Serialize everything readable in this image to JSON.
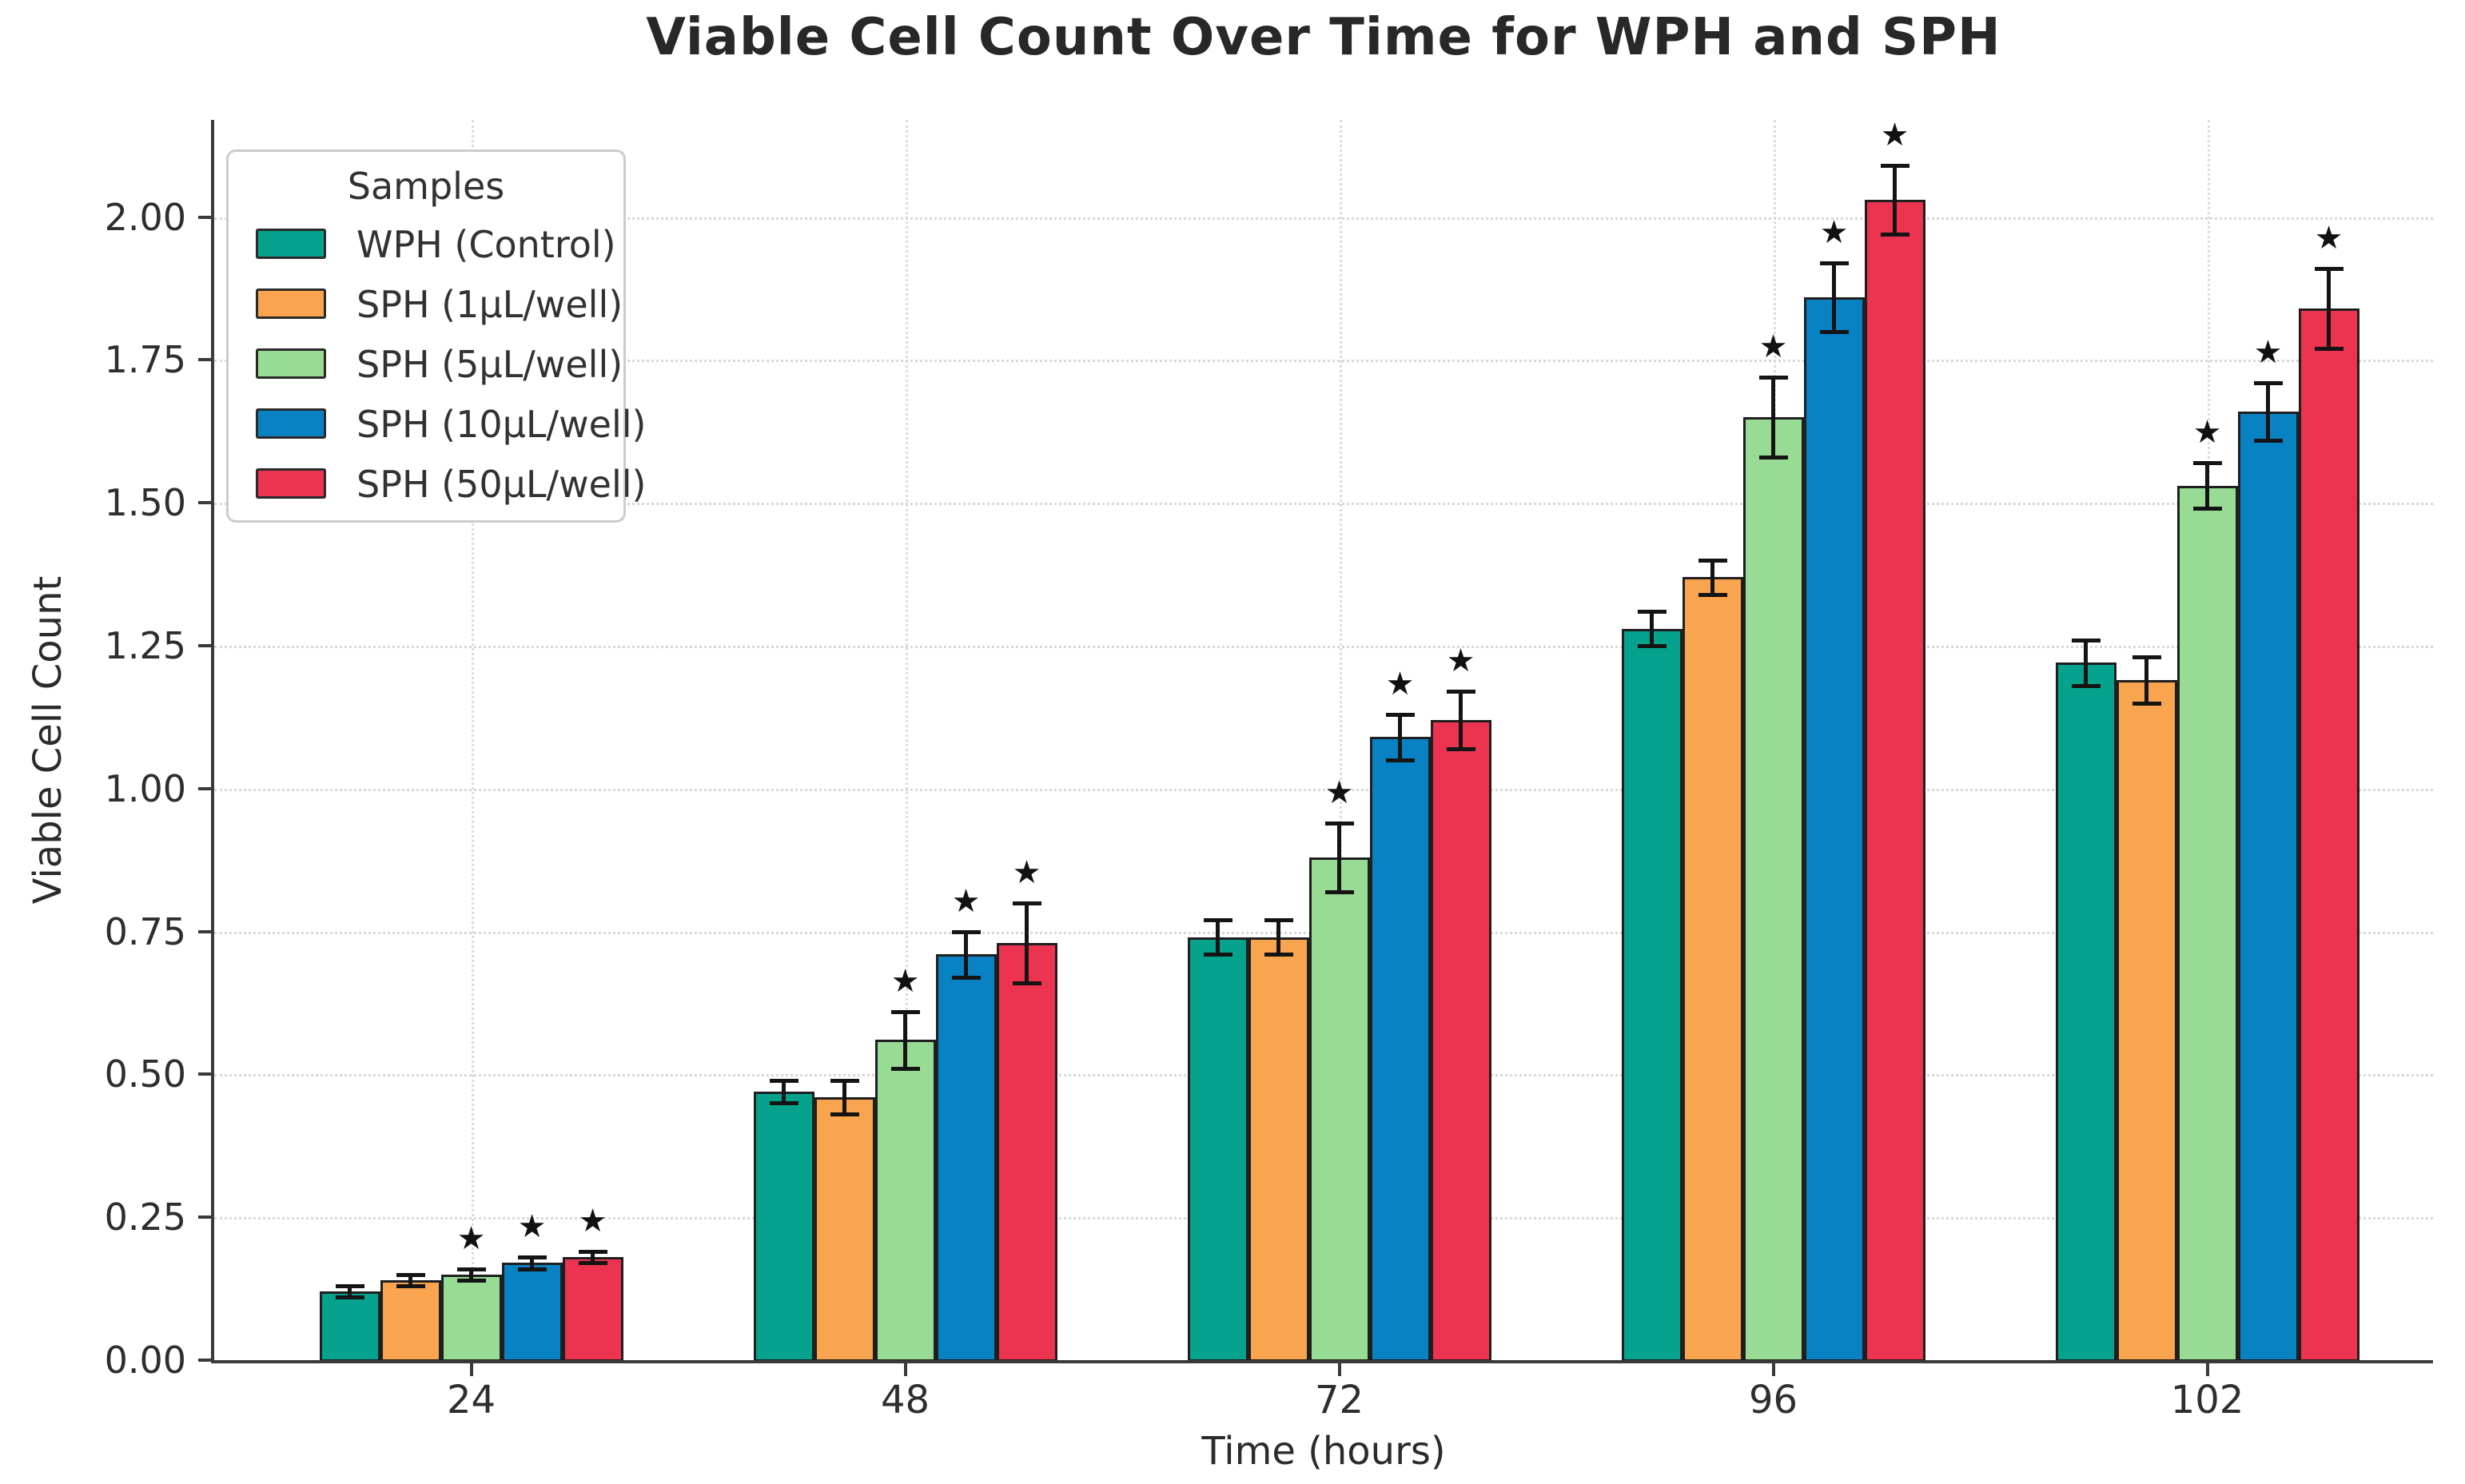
{
  "title": "Viable Cell Count Over Time for WPH and SPH",
  "chart_data": {
    "type": "bar",
    "title": "Viable Cell Count Over Time for WPH and SPH",
    "xlabel": "Time (hours)",
    "ylabel": "Viable Cell Count",
    "categories": [
      "24",
      "48",
      "72",
      "96",
      "102"
    ],
    "ylim": [
      0,
      2.17
    ],
    "ytick_step": 0.25,
    "ytick_labels": [
      "0.00",
      "0.25",
      "0.50",
      "0.75",
      "1.00",
      "1.25",
      "1.50",
      "1.75",
      "2.00"
    ],
    "grid": "dotted horizontal lines every 0.25 and dotted vertical lines at each category center",
    "legend": {
      "title": "Samples",
      "position": "upper left"
    },
    "significance_marker": "★",
    "series": [
      {
        "name": "WPH (Control)",
        "color": "#05A28D",
        "values": [
          0.12,
          0.47,
          0.74,
          1.28,
          1.22
        ],
        "errors": [
          0.01,
          0.02,
          0.03,
          0.03,
          0.04
        ],
        "significant": [
          false,
          false,
          false,
          false,
          false
        ]
      },
      {
        "name": "SPH (1µL/well)",
        "color": "#F9A44E",
        "values": [
          0.14,
          0.46,
          0.74,
          1.37,
          1.19
        ],
        "errors": [
          0.01,
          0.03,
          0.03,
          0.03,
          0.04
        ],
        "significant": [
          false,
          false,
          false,
          false,
          false
        ]
      },
      {
        "name": "SPH (5µL/well)",
        "color": "#98DB95",
        "values": [
          0.15,
          0.56,
          0.88,
          1.65,
          1.53
        ],
        "errors": [
          0.01,
          0.05,
          0.06,
          0.07,
          0.04
        ],
        "significant": [
          true,
          true,
          true,
          true,
          true
        ]
      },
      {
        "name": "SPH (10µL/well)",
        "color": "#0982C4",
        "values": [
          0.17,
          0.71,
          1.09,
          1.86,
          1.66
        ],
        "errors": [
          0.01,
          0.04,
          0.04,
          0.06,
          0.05
        ],
        "significant": [
          true,
          true,
          true,
          true,
          true
        ]
      },
      {
        "name": "SPH (50µL/well)",
        "color": "#EC3350",
        "values": [
          0.18,
          0.73,
          1.12,
          2.03,
          1.84
        ],
        "errors": [
          0.01,
          0.07,
          0.05,
          0.06,
          0.07
        ],
        "significant": [
          true,
          true,
          true,
          true,
          true
        ]
      }
    ]
  }
}
